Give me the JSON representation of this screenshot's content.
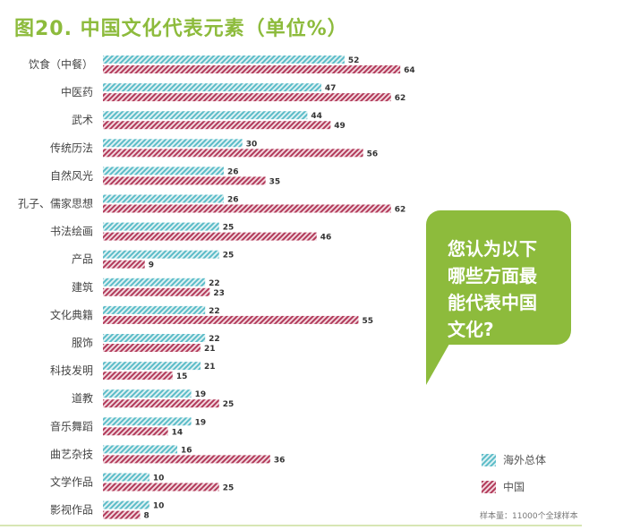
{
  "chart_data": {
    "type": "bar",
    "orientation": "horizontal",
    "title": "图20. 中国文化代表元素（单位%）",
    "categories": [
      "饮食（中餐）",
      "中医药",
      "武术",
      "传统历法",
      "自然风光",
      "孔子、儒家思想",
      "书法绘画",
      "产品",
      "建筑",
      "文化典籍",
      "服饰",
      "科技发明",
      "道教",
      "音乐舞蹈",
      "曲艺杂技",
      "文学作品",
      "影视作品"
    ],
    "series": [
      {
        "name": "海外总体",
        "color": "#5bbcc8",
        "values": [
          52,
          47,
          44,
          30,
          26,
          26,
          25,
          25,
          22,
          22,
          22,
          21,
          19,
          19,
          16,
          10,
          10
        ]
      },
      {
        "name": "中国",
        "color": "#b23a5a",
        "values": [
          64,
          62,
          49,
          56,
          35,
          62,
          46,
          9,
          23,
          55,
          21,
          15,
          25,
          14,
          36,
          25,
          8
        ]
      }
    ],
    "xlim": [
      0,
      70
    ],
    "legend_position": "bottom-right",
    "grid": false
  },
  "callout": [
    "您认为以下",
    "哪些方面最",
    "能代表中国",
    "文化?"
  ],
  "note": "样本量：11000个全球样本"
}
